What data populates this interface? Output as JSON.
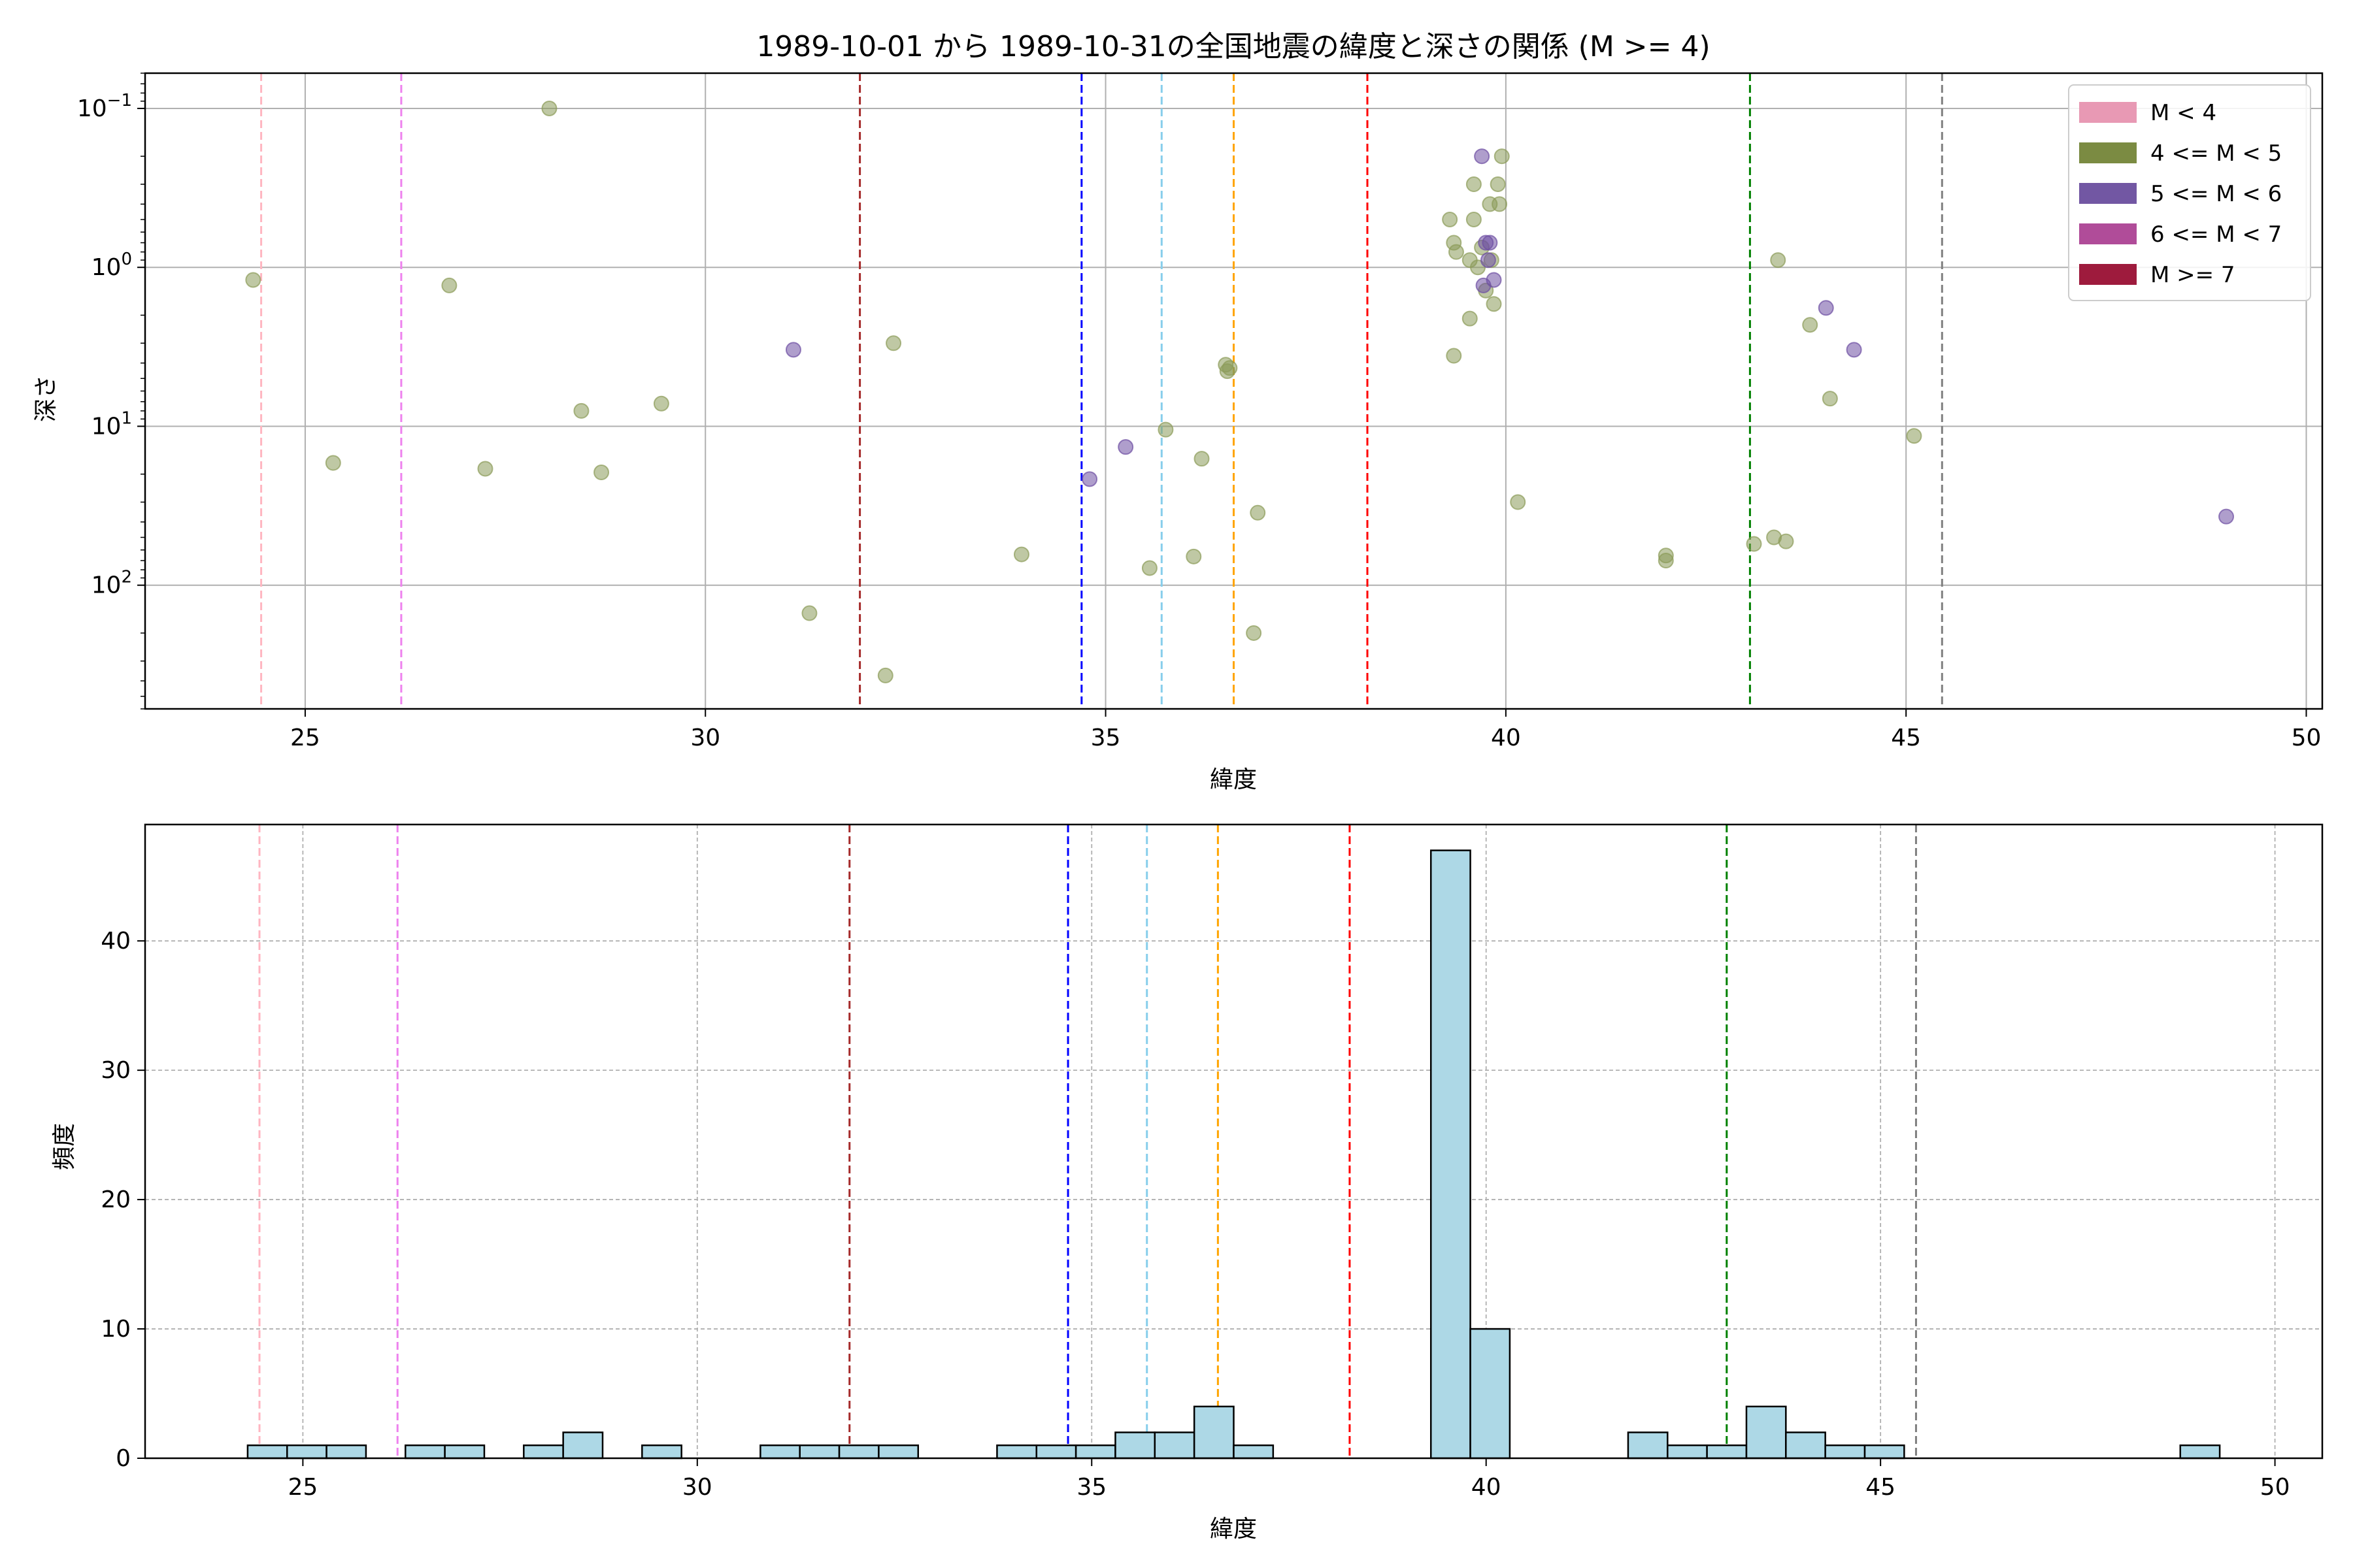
{
  "chart_data": [
    {
      "type": "scatter",
      "title": "1989-10-01 から 1989-10-31の全国地震の緯度と深さの関係 (M >= 4)",
      "xlabel": "緯度",
      "ylabel": "深さ",
      "xlim": [
        23.0,
        50.2
      ],
      "ylim": [
        0.06,
        600
      ],
      "yscale": "log",
      "y_inverted": true,
      "grid": true,
      "x_ticks": [
        25,
        30,
        35,
        40,
        45,
        50
      ],
      "y_ticks": [
        {
          "value": 0.1,
          "base": "10",
          "exp": "−1"
        },
        {
          "value": 1,
          "base": "10",
          "exp": "0"
        },
        {
          "value": 10,
          "base": "10",
          "exp": "1"
        },
        {
          "value": 100,
          "base": "10",
          "exp": "2"
        }
      ],
      "legend": {
        "placement": "top-right",
        "entries": [
          {
            "label": "M < 4",
            "color": "#e899b4"
          },
          {
            "label": "4 <= M < 5",
            "color": "#7b8b42"
          },
          {
            "label": "5 <= M < 6",
            "color": "#7257a3"
          },
          {
            "label": "6 <= M < 7",
            "color": "#b04c99"
          },
          {
            "label": "M >= 7",
            "color": "#9e1b3d"
          }
        ]
      },
      "vlines": [
        {
          "x": 24.45,
          "color": "#ffb6c1"
        },
        {
          "x": 26.2,
          "color": "#ee82ee"
        },
        {
          "x": 31.93,
          "color": "#a52a2a"
        },
        {
          "x": 34.7,
          "color": "#0000ff"
        },
        {
          "x": 35.7,
          "color": "#87ceeb"
        },
        {
          "x": 36.6,
          "color": "#ffa500"
        },
        {
          "x": 38.27,
          "color": "#ff0000"
        },
        {
          "x": 43.05,
          "color": "#008000"
        },
        {
          "x": 45.45,
          "color": "#808080"
        }
      ],
      "series": [
        {
          "name": "4 <= M < 5",
          "color": "#8b9b59",
          "points": [
            [
              24.35,
              1.2
            ],
            [
              25.35,
              17
            ],
            [
              26.8,
              1.3
            ],
            [
              27.25,
              18.5
            ],
            [
              28.05,
              0.1
            ],
            [
              28.45,
              8
            ],
            [
              28.7,
              19.5
            ],
            [
              29.45,
              7.2
            ],
            [
              31.3,
              150
            ],
            [
              32.25,
              370
            ],
            [
              32.35,
              3
            ],
            [
              33.95,
              64
            ],
            [
              35.55,
              78
            ],
            [
              35.75,
              10.5
            ],
            [
              36.1,
              66
            ],
            [
              36.2,
              16
            ],
            [
              36.5,
              4.1
            ],
            [
              36.52,
              4.5
            ],
            [
              36.55,
              4.3
            ],
            [
              36.85,
              200
            ],
            [
              36.9,
              35
            ],
            [
              39.3,
              0.5
            ],
            [
              39.35,
              0.7
            ],
            [
              39.38,
              0.8
            ],
            [
              39.55,
              0.9
            ],
            [
              39.6,
              0.5
            ],
            [
              39.6,
              0.3
            ],
            [
              39.65,
              1.0
            ],
            [
              39.7,
              0.75
            ],
            [
              39.75,
              1.4
            ],
            [
              39.8,
              0.4
            ],
            [
              39.82,
              0.9
            ],
            [
              39.85,
              1.7
            ],
            [
              39.9,
              0.3
            ],
            [
              39.92,
              0.4
            ],
            [
              39.95,
              0.2
            ],
            [
              39.55,
              2.1
            ],
            [
              39.35,
              3.6
            ],
            [
              40.15,
              30
            ],
            [
              42.0,
              65
            ],
            [
              42.0,
              70
            ],
            [
              43.1,
              55
            ],
            [
              43.35,
              50
            ],
            [
              43.4,
              0.9
            ],
            [
              43.5,
              53
            ],
            [
              43.8,
              2.3
            ],
            [
              44.05,
              6.7
            ],
            [
              45.1,
              11.5
            ]
          ]
        },
        {
          "name": "5 <= M < 6",
          "color": "#6d4fa3",
          "points": [
            [
              31.1,
              3.3
            ],
            [
              34.8,
              21.5
            ],
            [
              35.25,
              13.5
            ],
            [
              39.7,
              0.2
            ],
            [
              39.75,
              0.7
            ],
            [
              39.8,
              0.7
            ],
            [
              39.72,
              1.3
            ],
            [
              39.85,
              1.2
            ],
            [
              39.78,
              0.9
            ],
            [
              44.0,
              1.8
            ],
            [
              44.35,
              3.3
            ],
            [
              49.0,
              37
            ]
          ]
        }
      ]
    },
    {
      "type": "bar",
      "xlabel": "緯度",
      "ylabel": "頻度",
      "xlim": [
        23.0,
        50.6
      ],
      "ylim": [
        0,
        49
      ],
      "grid": true,
      "x_ticks": [
        25,
        30,
        35,
        40,
        45,
        50
      ],
      "y_ticks": [
        0,
        10,
        20,
        30,
        40
      ],
      "bar_color": "#add8e6",
      "bin_width": 0.5,
      "bins": [
        [
          24.3,
          1
        ],
        [
          24.8,
          1
        ],
        [
          25.3,
          1
        ],
        [
          26.3,
          1
        ],
        [
          26.8,
          1
        ],
        [
          27.8,
          1
        ],
        [
          28.3,
          2
        ],
        [
          29.3,
          1
        ],
        [
          30.8,
          1
        ],
        [
          31.3,
          1
        ],
        [
          31.8,
          1
        ],
        [
          32.3,
          1
        ],
        [
          33.8,
          1
        ],
        [
          34.3,
          1
        ],
        [
          34.8,
          1
        ],
        [
          35.3,
          2
        ],
        [
          35.8,
          2
        ],
        [
          36.3,
          4
        ],
        [
          36.8,
          1
        ],
        [
          39.3,
          47
        ],
        [
          39.8,
          10
        ],
        [
          41.8,
          2
        ],
        [
          42.3,
          1
        ],
        [
          42.8,
          1
        ],
        [
          43.3,
          4
        ],
        [
          43.8,
          2
        ],
        [
          44.3,
          1
        ],
        [
          44.8,
          1
        ],
        [
          48.8,
          1
        ]
      ],
      "vlines": [
        {
          "x": 24.45,
          "color": "#ffb6c1"
        },
        {
          "x": 26.2,
          "color": "#ee82ee"
        },
        {
          "x": 31.93,
          "color": "#a52a2a"
        },
        {
          "x": 34.7,
          "color": "#0000ff"
        },
        {
          "x": 35.7,
          "color": "#87ceeb"
        },
        {
          "x": 36.6,
          "color": "#ffa500"
        },
        {
          "x": 38.27,
          "color": "#ff0000"
        },
        {
          "x": 43.05,
          "color": "#008000"
        },
        {
          "x": 45.45,
          "color": "#808080"
        }
      ]
    }
  ]
}
